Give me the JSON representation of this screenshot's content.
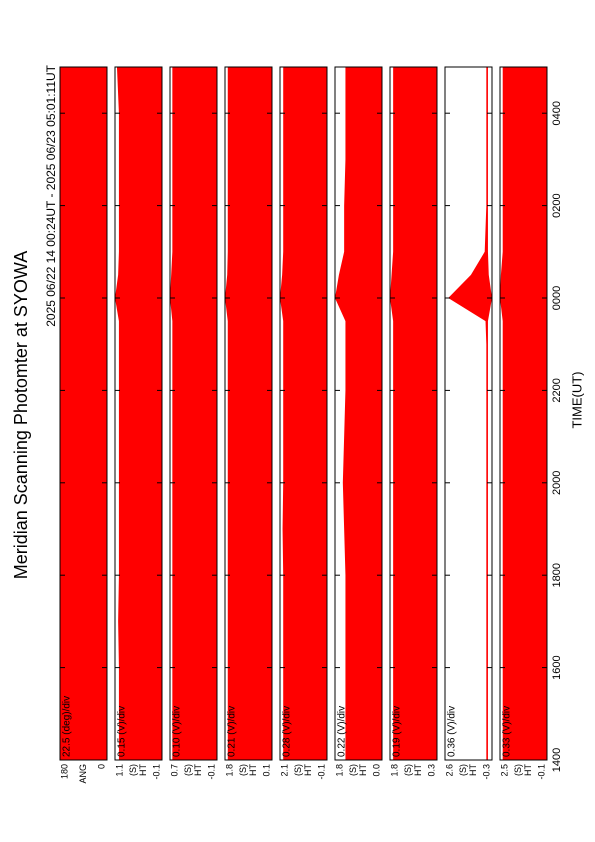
{
  "chart_data": {
    "type": "band",
    "title": "Meridian Scanning Photomter at SYOWA",
    "subtitle": "2025 06/22 14 00:24UT - 2025 06/23 05:01:11UT",
    "xlabel": "TIME(UT)",
    "xlim": [
      14,
      29
    ],
    "xticks": [
      {
        "value": 14,
        "label": "1400"
      },
      {
        "value": 16,
        "label": "1600"
      },
      {
        "value": 18,
        "label": "1800"
      },
      {
        "value": 20,
        "label": "2000"
      },
      {
        "value": 22,
        "label": "2200"
      },
      {
        "value": 24,
        "label": "0000"
      },
      {
        "value": 26,
        "label": "0200"
      },
      {
        "value": 28,
        "label": "0400"
      }
    ],
    "panels": [
      {
        "scale": "22.5 (deg)/div",
        "ylabel_lines": [
          "ANG"
        ],
        "ylim": [
          0,
          180
        ],
        "yticks": [
          0,
          180
        ],
        "color": "#ff0000",
        "x": [
          14,
          15,
          16,
          17,
          18,
          19,
          20,
          21,
          22,
          23,
          23.5,
          24,
          24.5,
          25,
          26,
          27,
          28,
          29
        ],
        "high": [
          180,
          180,
          180,
          180,
          180,
          180,
          180,
          180,
          180,
          180,
          180,
          180,
          180,
          180,
          180,
          180,
          180,
          180
        ],
        "low": [
          0,
          0,
          0,
          0,
          0,
          0,
          0,
          0,
          0,
          0,
          0,
          0,
          0,
          0,
          0,
          0,
          0,
          0
        ]
      },
      {
        "scale": "0.15 (V)/div",
        "ylabel_lines": [
          "(S)",
          "HT"
        ],
        "ylim": [
          -0.1,
          1.1
        ],
        "yticks": [
          -0.1,
          1.1
        ],
        "color": "#ff0000",
        "x": [
          14,
          15,
          16,
          17,
          18,
          19,
          20,
          21,
          22,
          23,
          23.5,
          24,
          24.5,
          25,
          26,
          27,
          28,
          29
        ],
        "high": [
          1.0,
          1.0,
          1.0,
          1.02,
          1.0,
          1.0,
          1.0,
          1.0,
          1.0,
          1.0,
          1.0,
          1.1,
          1.02,
          1.0,
          1.0,
          1.0,
          1.0,
          1.05
        ],
        "low": [
          -0.1,
          -0.1,
          -0.1,
          -0.1,
          -0.1,
          -0.1,
          -0.1,
          -0.1,
          -0.1,
          -0.1,
          -0.1,
          -0.1,
          -0.1,
          -0.1,
          -0.1,
          -0.1,
          -0.1,
          -0.1
        ]
      },
      {
        "scale": "0.10 (V)/div",
        "ylabel_lines": [
          "(S)",
          "HT"
        ],
        "ylim": [
          -0.1,
          0.7
        ],
        "yticks": [
          -0.1,
          0.7
        ],
        "color": "#ff0000",
        "x": [
          14,
          15,
          16,
          17,
          18,
          19,
          20,
          21,
          22,
          23,
          23.5,
          24,
          24.5,
          25,
          26,
          27,
          28,
          29
        ],
        "high": [
          0.66,
          0.66,
          0.66,
          0.66,
          0.66,
          0.66,
          0.66,
          0.66,
          0.66,
          0.66,
          0.66,
          0.7,
          0.68,
          0.66,
          0.66,
          0.66,
          0.66,
          0.66
        ],
        "low": [
          -0.1,
          -0.1,
          -0.1,
          -0.1,
          -0.1,
          -0.1,
          -0.1,
          -0.1,
          -0.1,
          -0.1,
          -0.1,
          -0.1,
          -0.1,
          -0.1,
          -0.1,
          -0.1,
          -0.1,
          -0.1
        ]
      },
      {
        "scale": "0.21 (V)/div",
        "ylabel_lines": [
          "(S)",
          "HT"
        ],
        "ylim": [
          0.1,
          1.8
        ],
        "yticks": [
          0.1,
          1.8
        ],
        "color": "#ff0000",
        "x": [
          14,
          15,
          16,
          17,
          18,
          19,
          20,
          21,
          22,
          23,
          23.5,
          24,
          24.5,
          25,
          26,
          27,
          28,
          29
        ],
        "high": [
          1.7,
          1.7,
          1.7,
          1.7,
          1.7,
          1.7,
          1.7,
          1.7,
          1.7,
          1.7,
          1.7,
          1.8,
          1.72,
          1.7,
          1.7,
          1.7,
          1.7,
          1.7
        ],
        "low": [
          0.1,
          0.1,
          0.1,
          0.1,
          0.1,
          0.1,
          0.1,
          0.1,
          0.1,
          0.1,
          0.1,
          0.1,
          0.1,
          0.1,
          0.1,
          0.1,
          0.1,
          0.1
        ]
      },
      {
        "scale": "0.28 (V)/div",
        "ylabel_lines": [
          "(S)",
          "HT"
        ],
        "ylim": [
          -0.1,
          2.1
        ],
        "yticks": [
          -0.1,
          2.1
        ],
        "color": "#ff0000",
        "x": [
          14,
          15,
          16,
          17,
          18,
          19,
          20,
          21,
          22,
          23,
          23.5,
          24,
          24.5,
          25,
          26,
          27,
          28,
          29
        ],
        "high": [
          1.95,
          1.95,
          1.95,
          1.95,
          1.95,
          1.98,
          1.95,
          1.95,
          1.95,
          1.95,
          1.95,
          2.1,
          2.0,
          1.95,
          1.95,
          1.95,
          1.95,
          1.95
        ],
        "low": [
          -0.1,
          -0.1,
          -0.1,
          -0.1,
          -0.1,
          -0.1,
          -0.1,
          -0.1,
          -0.1,
          -0.1,
          -0.1,
          -0.1,
          -0.1,
          -0.1,
          -0.1,
          -0.1,
          -0.1,
          -0.1
        ]
      },
      {
        "scale": "0.22 (V)/div",
        "ylabel_lines": [
          "(S)",
          "HT"
        ],
        "ylim": [
          0,
          1.8
        ],
        "yticks": [
          {
            "value": 0,
            "label": "0.0"
          },
          1.8
        ],
        "color": "#ff0000",
        "x": [
          14,
          15,
          16,
          17,
          18,
          19,
          20,
          21,
          22,
          23,
          23.5,
          24,
          24.5,
          25,
          26,
          27,
          28,
          29
        ],
        "high": [
          1.4,
          1.4,
          1.4,
          1.4,
          1.4,
          1.45,
          1.5,
          1.45,
          1.4,
          1.4,
          1.4,
          1.8,
          1.65,
          1.45,
          1.45,
          1.4,
          1.4,
          1.4
        ],
        "low": [
          0,
          0,
          0,
          0,
          0,
          0,
          0,
          0,
          0,
          0,
          0,
          0,
          0,
          0,
          0,
          0,
          0,
          0
        ]
      },
      {
        "scale": "0.19 (V)/div",
        "ylabel_lines": [
          "(S)",
          "HT"
        ],
        "ylim": [
          0.3,
          1.8
        ],
        "yticks": [
          0.3,
          1.8
        ],
        "color": "#ff0000",
        "x": [
          14,
          15,
          16,
          17,
          18,
          19,
          20,
          21,
          22,
          23,
          23.5,
          24,
          24.5,
          25,
          26,
          27,
          28,
          29
        ],
        "high": [
          1.7,
          1.7,
          1.7,
          1.7,
          1.7,
          1.7,
          1.7,
          1.7,
          1.7,
          1.7,
          1.7,
          1.8,
          1.75,
          1.7,
          1.7,
          1.7,
          1.7,
          1.7
        ],
        "low": [
          0.3,
          0.3,
          0.3,
          0.3,
          0.3,
          0.3,
          0.3,
          0.3,
          0.3,
          0.3,
          0.3,
          0.3,
          0.3,
          0.3,
          0.3,
          0.3,
          0.3,
          0.3
        ]
      },
      {
        "scale": "0.36 (V)/div",
        "ylabel_lines": [
          "(S)",
          "HT"
        ],
        "ylim": [
          -0.3,
          2.6
        ],
        "yticks": [
          -0.3,
          2.6
        ],
        "color": "#ff0000",
        "x": [
          14,
          15,
          16,
          17,
          18,
          19,
          20,
          21,
          22,
          23,
          23.5,
          24,
          24.5,
          25,
          26,
          27,
          28,
          29
        ],
        "high": [
          0.05,
          0.05,
          0.05,
          0.05,
          0.05,
          0.05,
          0.05,
          0.05,
          0.05,
          0.05,
          0.1,
          2.4,
          1.0,
          0.15,
          0.05,
          0.05,
          0.05,
          0.05
        ],
        "low": [
          -0.05,
          -0.05,
          -0.05,
          -0.05,
          -0.05,
          -0.05,
          -0.05,
          -0.05,
          -0.05,
          -0.05,
          -0.05,
          -0.3,
          -0.1,
          -0.05,
          -0.05,
          -0.05,
          -0.05,
          -0.05
        ]
      },
      {
        "scale": "0.33 (V)/div",
        "ylabel_lines": [
          "(S)",
          "HT"
        ],
        "ylim": [
          -0.1,
          2.5
        ],
        "yticks": [
          -0.1,
          2.5
        ],
        "color": "#ff0000",
        "x": [
          14,
          15,
          16,
          17,
          18,
          19,
          20,
          21,
          22,
          23,
          23.5,
          24,
          24.5,
          25,
          26,
          27,
          28,
          29
        ],
        "high": [
          2.35,
          2.35,
          2.35,
          2.35,
          2.35,
          2.35,
          2.35,
          2.35,
          2.35,
          2.35,
          2.35,
          2.5,
          2.45,
          2.35,
          2.35,
          2.35,
          2.35,
          2.35
        ],
        "low": [
          -0.1,
          -0.1,
          -0.1,
          -0.1,
          -0.1,
          -0.1,
          -0.1,
          -0.1,
          -0.1,
          -0.1,
          -0.1,
          -0.1,
          -0.1,
          -0.1,
          -0.1,
          -0.1,
          -0.1,
          -0.1
        ]
      }
    ]
  }
}
